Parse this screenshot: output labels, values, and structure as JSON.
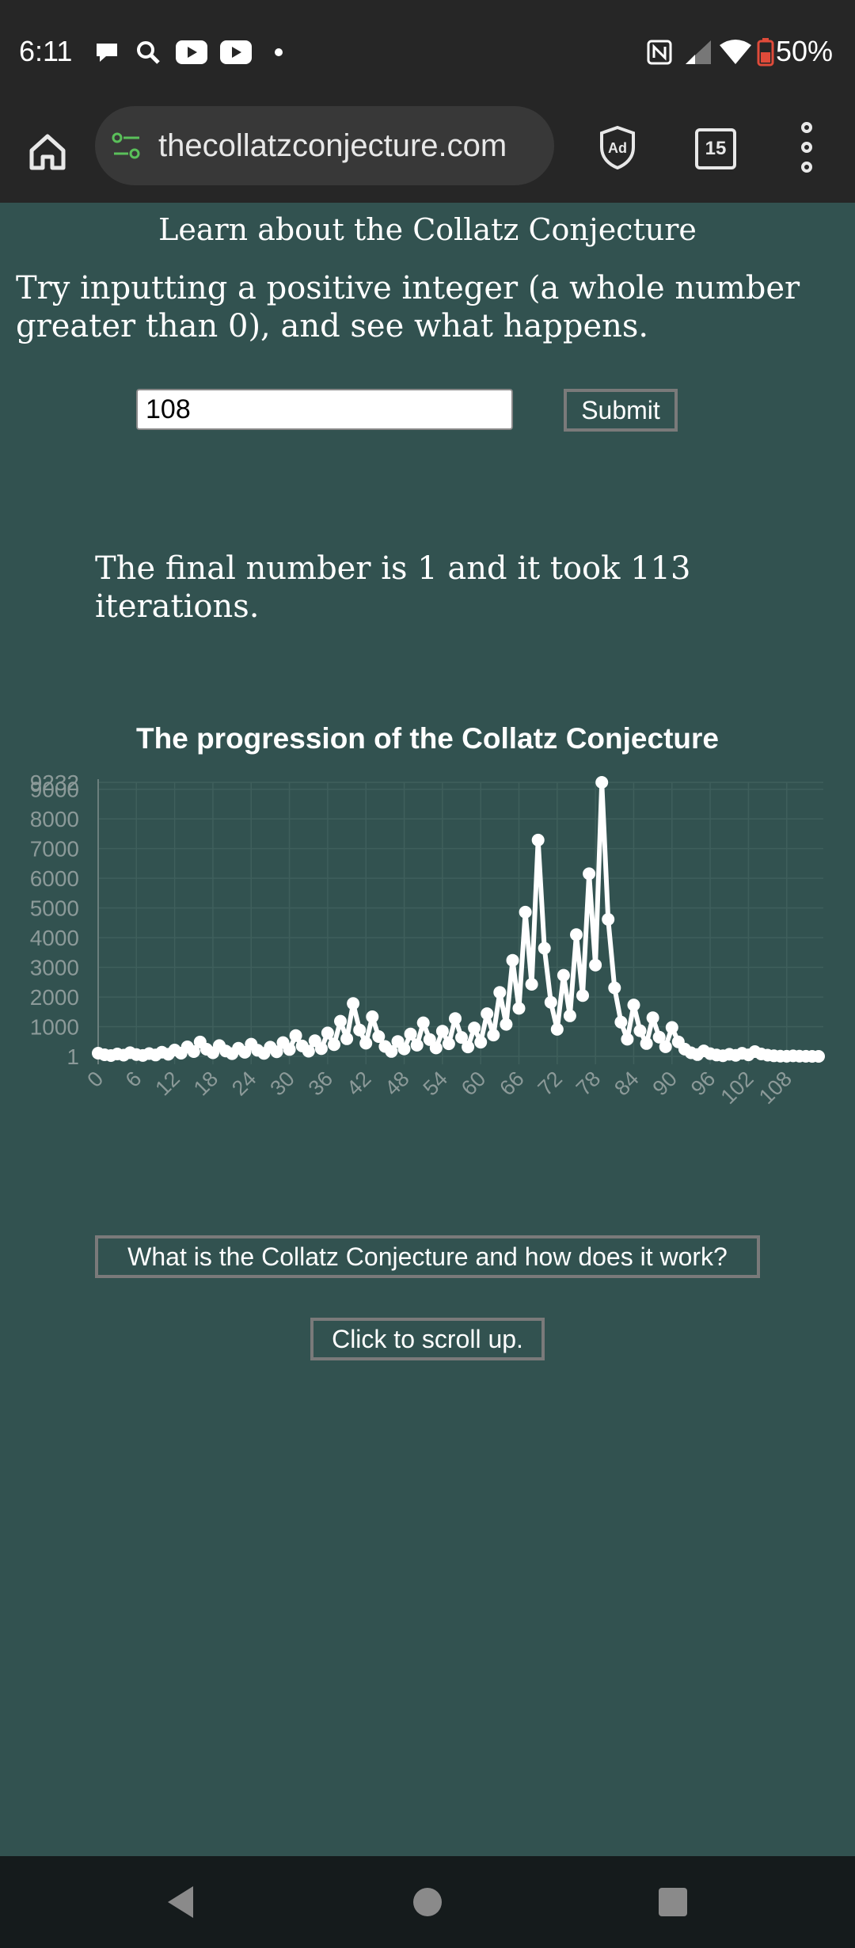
{
  "status_bar": {
    "time": "6:11",
    "battery": "50%",
    "icons": [
      "chat-bubble-icon",
      "search-icon",
      "youtube-icon",
      "youtube-icon",
      "dot-icon",
      "nfc-icon",
      "signal-icon",
      "wifi-icon",
      "battery-saver-icon"
    ]
  },
  "browser": {
    "url": "thecollatzconjecture.com",
    "tab_count": "15",
    "adblock_label": "Ad"
  },
  "page": {
    "heading": "Learn about the Collatz Conjecture",
    "intro": "Try inputting a positive integer (a whole number greater than 0), and see what happens.",
    "input_value": "108",
    "submit_label": "Submit",
    "result_text": "The final number is 1 and it took 113 iterations.",
    "info_button_label": "What is the Collatz Conjecture and how does it work?",
    "scroll_button_label": "Click to scroll up."
  },
  "colors": {
    "page_background": "#325250",
    "line": "#ffffff",
    "grid": "#3f5f5c",
    "tick_label": "#8c9a99"
  },
  "chart_data": {
    "type": "line",
    "title": "The progression of the Collatz Conjecture",
    "xlabel": "",
    "ylabel": "",
    "y_tick_labels": [
      "9232",
      "9000",
      "8000",
      "7000",
      "6000",
      "5000",
      "4000",
      "3000",
      "2000",
      "1000",
      "1"
    ],
    "x_tick_labels": [
      "0",
      "6",
      "12",
      "18",
      "24",
      "30",
      "36",
      "42",
      "48",
      "54",
      "60",
      "66",
      "72",
      "78",
      "84",
      "90",
      "96",
      "102",
      "108"
    ],
    "ylim": [
      1,
      9232
    ],
    "grid": true,
    "series": [
      {
        "values": [
          108,
          54,
          27,
          82,
          41,
          124,
          62,
          31,
          94,
          47,
          142,
          71,
          214,
          107,
          322,
          161,
          484,
          242,
          121,
          364,
          182,
          91,
          274,
          137,
          412,
          206,
          103,
          310,
          155,
          466,
          233,
          700,
          350,
          175,
          526,
          263,
          790,
          395,
          1186,
          593,
          1780,
          890,
          445,
          1336,
          668,
          334,
          167,
          502,
          251,
          754,
          377,
          1132,
          566,
          283,
          850,
          425,
          1276,
          638,
          319,
          958,
          479,
          1438,
          719,
          2158,
          1079,
          3238,
          1619,
          4858,
          2429,
          7288,
          3644,
          1822,
          911,
          2734,
          1367,
          4102,
          2051,
          6154,
          3077,
          9232,
          4616,
          2308,
          1154,
          577,
          1732,
          866,
          433,
          1300,
          650,
          325,
          976,
          488,
          244,
          122,
          61,
          184,
          92,
          46,
          23,
          70,
          35,
          106,
          53,
          160,
          80,
          40,
          20,
          10,
          5,
          16,
          8,
          4,
          2,
          1
        ]
      }
    ]
  },
  "nav_bar": {
    "icons": [
      "back-icon",
      "home-circle-icon",
      "recents-icon"
    ]
  }
}
